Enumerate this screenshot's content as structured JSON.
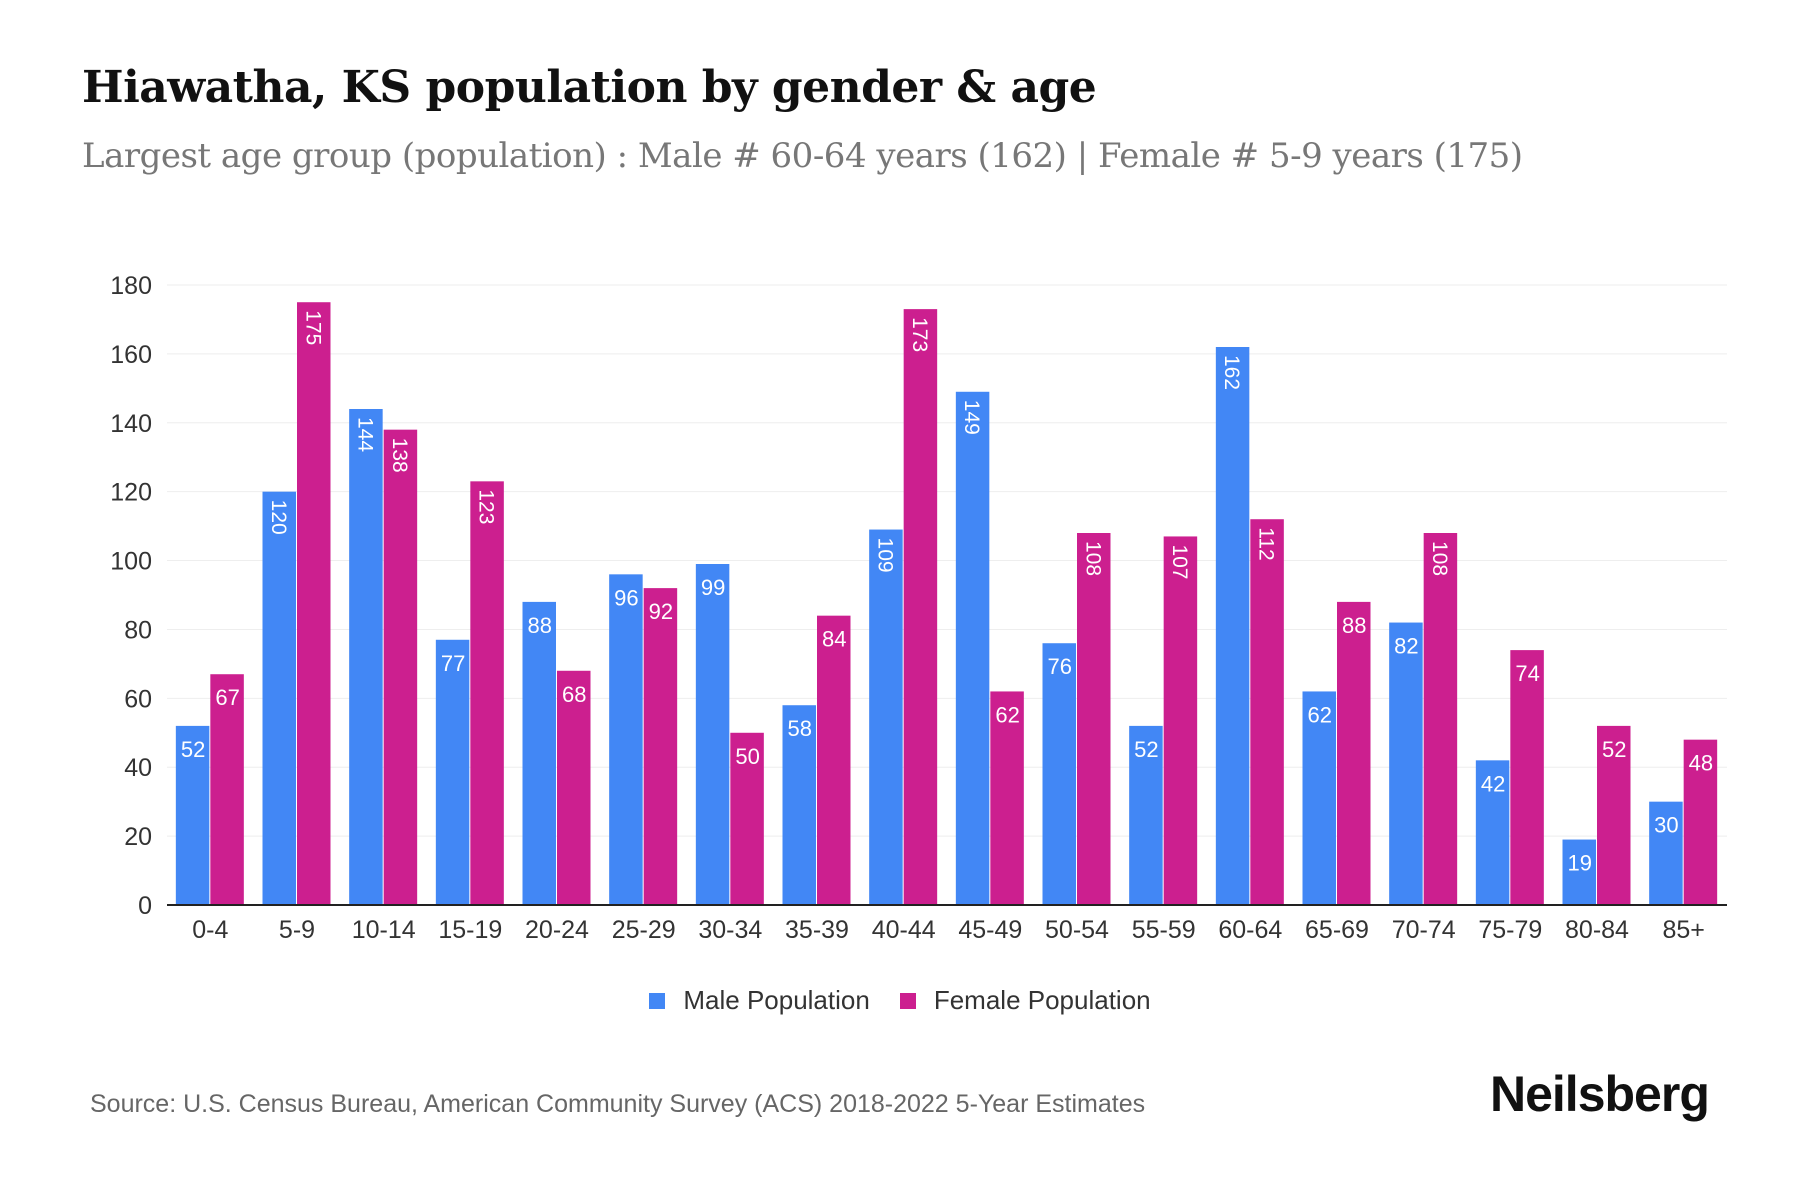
{
  "title": "Hiawatha, KS population by gender & age",
  "subtitle": "Largest age group (population) : Male # 60-64 years (162) | Female # 5-9 years (175)",
  "source": "Source: U.S. Census Bureau, American Community Survey (ACS) 2018-2022 5-Year Estimates",
  "logo": "Neilsberg",
  "chart_data": {
    "type": "bar",
    "title": "Hiawatha, KS population by gender & age",
    "xlabel": "",
    "ylabel": "",
    "ylim": [
      0,
      180
    ],
    "yticks": [
      0,
      20,
      40,
      60,
      80,
      100,
      120,
      140,
      160,
      180
    ],
    "grid": true,
    "legend_position": "bottom-center",
    "categories": [
      "0-4",
      "5-9",
      "10-14",
      "15-19",
      "20-24",
      "25-29",
      "30-34",
      "35-39",
      "40-44",
      "45-49",
      "50-54",
      "55-59",
      "60-64",
      "65-69",
      "70-74",
      "75-79",
      "80-84",
      "85+"
    ],
    "series": [
      {
        "name": "Male Population",
        "color": "#4287f5",
        "values": [
          52,
          120,
          144,
          77,
          88,
          96,
          99,
          58,
          109,
          149,
          76,
          52,
          162,
          62,
          82,
          42,
          19,
          30
        ]
      },
      {
        "name": "Female Population",
        "color": "#cc1f8f",
        "values": [
          67,
          175,
          138,
          123,
          68,
          92,
          50,
          84,
          173,
          62,
          108,
          107,
          112,
          88,
          108,
          74,
          52,
          48
        ]
      }
    ]
  }
}
